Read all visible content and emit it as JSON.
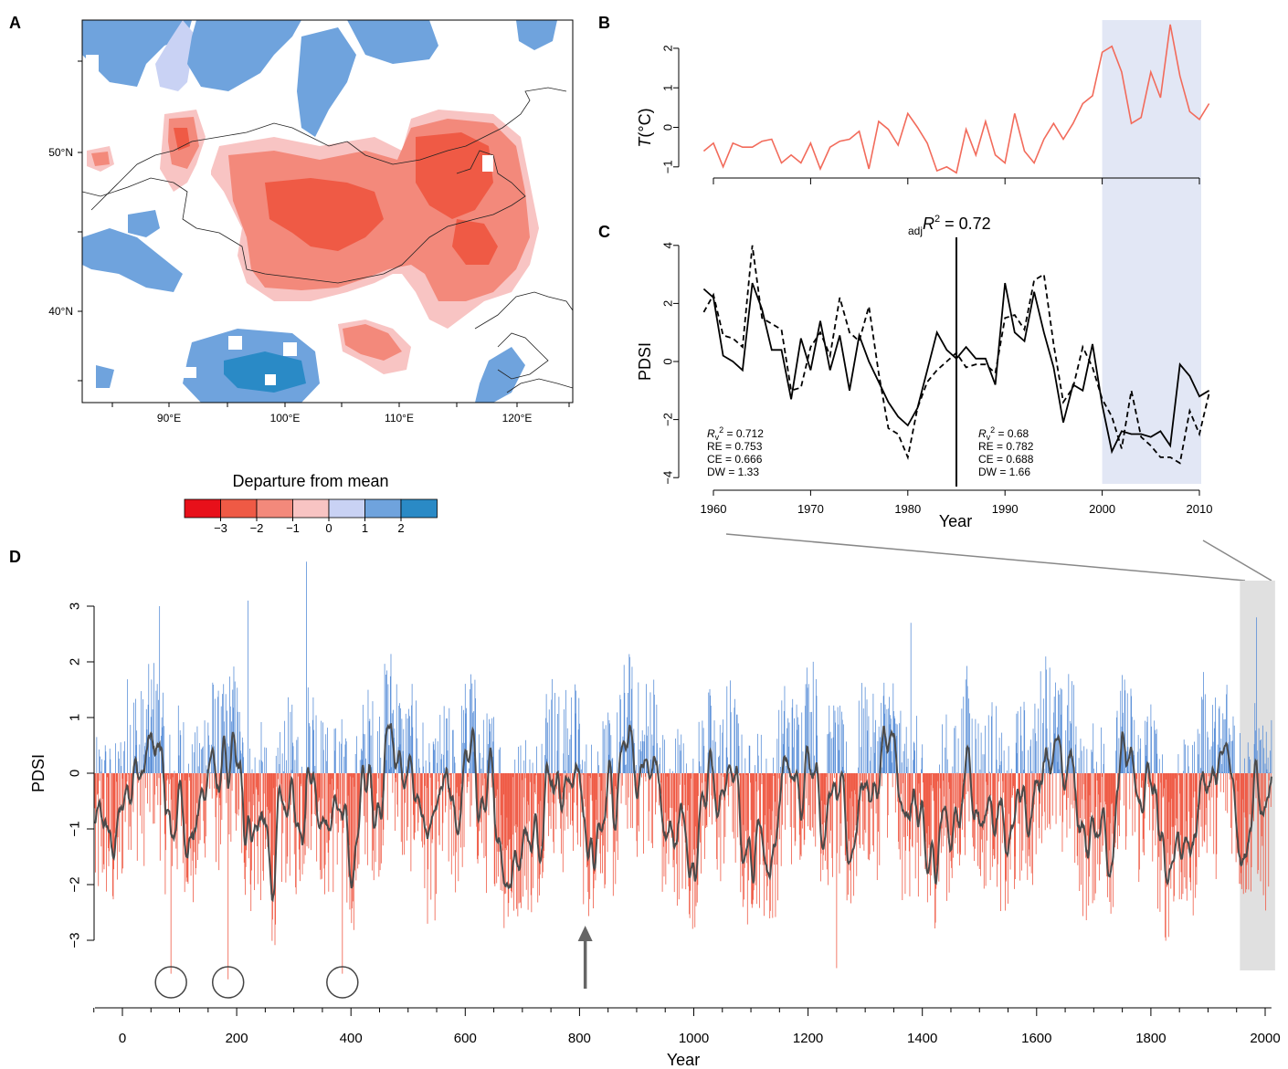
{
  "panels": {
    "a": {
      "label": "A",
      "lat_ticks": [
        "50°N",
        "40°N"
      ],
      "lon_ticks": [
        "90°E",
        "100°E",
        "110°E",
        "120°E"
      ],
      "legend_title": "Departure from mean",
      "legend_labels": [
        "−3",
        "−2",
        "−1",
        "0",
        "1",
        "2"
      ],
      "legend_colors": [
        "#e8101a",
        "#ef5a45",
        "#f3897b",
        "#f8c4c3",
        "#c9d2f4",
        "#6fa3dd",
        "#2a8ac6"
      ]
    },
    "b": {
      "label": "B",
      "ylabel_var": "T",
      "ylabel_unit": "(°C)",
      "yticks": [
        "2",
        "1",
        "0",
        "−1"
      ]
    },
    "c": {
      "label": "C",
      "ylabel": "PDSI",
      "xlabel": "Year",
      "xticks": [
        "1960",
        "1970",
        "1980",
        "1990",
        "2000",
        "2010"
      ],
      "yticks": [
        "4",
        "2",
        "0",
        "−2",
        "−4"
      ],
      "r2_prefix": "adj",
      "r2_var": "R",
      "r2_value": " = 0.72",
      "stats_left": [
        "= 0.712",
        "RE = 0.753",
        "CE = 0.666",
        "DW = 1.33"
      ],
      "stats_right": [
        "= 0.68",
        "RE = 0.782",
        "CE = 0.688",
        "DW = 1.66"
      ],
      "rv_symbol": "R",
      "rv_sub": "v",
      "rv_sup": "2"
    },
    "d": {
      "label": "D",
      "ylabel": "PDSI",
      "xlabel": "Year",
      "xticks": [
        "0",
        "200",
        "400",
        "600",
        "800",
        "1000",
        "1200",
        "1400",
        "1600",
        "1800",
        "2000"
      ],
      "yticks": [
        "3",
        "2",
        "1",
        "0",
        "−1",
        "−2",
        "−3"
      ]
    }
  },
  "colors": {
    "temperature": "#f26b5b",
    "positive": "#5a8fd8",
    "negative": "#ef5a45",
    "smooth": "#4a4a4a",
    "highlight_blue": "#e2e7f5",
    "highlight_grey": "#e0e0e0"
  },
  "chart_data": [
    {
      "type": "line",
      "panel": "B",
      "x": [
        1959,
        1960,
        1961,
        1962,
        1963,
        1964,
        1965,
        1966,
        1967,
        1968,
        1969,
        1970,
        1971,
        1972,
        1973,
        1974,
        1975,
        1976,
        1977,
        1978,
        1979,
        1980,
        1981,
        1982,
        1983,
        1984,
        1985,
        1986,
        1987,
        1988,
        1989,
        1990,
        1991,
        1992,
        1993,
        1994,
        1995,
        1996,
        1997,
        1998,
        1999,
        2000,
        2001,
        2002,
        2003,
        2004,
        2005,
        2006,
        2007,
        2008,
        2009,
        2010,
        2011
      ],
      "y": [
        -0.6,
        -0.4,
        -1.0,
        -0.4,
        -0.5,
        -0.5,
        -0.35,
        -0.3,
        -0.9,
        -0.7,
        -0.9,
        -0.4,
        -1.05,
        -0.5,
        -0.35,
        -0.3,
        -0.1,
        -1.05,
        0.15,
        -0.05,
        -0.45,
        0.35,
        0.0,
        -0.4,
        -1.1,
        -1.0,
        -1.15,
        -0.05,
        -0.7,
        0.15,
        -0.7,
        -0.9,
        0.35,
        -0.6,
        -0.9,
        -0.3,
        0.1,
        -0.3,
        0.1,
        0.6,
        0.8,
        1.9,
        2.05,
        1.4,
        0.1,
        0.25,
        1.4,
        0.75,
        2.6,
        1.3,
        0.4,
        0.2,
        0.6
      ],
      "ylim": [
        -1.2,
        2.7
      ],
      "xlim": [
        1959,
        2011
      ],
      "highlight": [
        2000,
        2010
      ]
    },
    {
      "type": "line",
      "panel": "C",
      "series": [
        {
          "name": "",
          "style": "solid",
          "x": [
            1959,
            1960,
            1961,
            1962,
            1963,
            1964,
            1965,
            1966,
            1967,
            1968,
            1969,
            1970,
            1971,
            1972,
            1973,
            1974,
            1975,
            1976,
            1977,
            1978,
            1979,
            1980,
            1981,
            1982,
            1983,
            1984,
            1985,
            1986,
            1987,
            1988,
            1989,
            1990,
            1991,
            1992,
            1993,
            1994,
            1995,
            1996,
            1997,
            1998,
            1999,
            2000,
            2001,
            2002,
            2003,
            2004,
            2005,
            2006,
            2007,
            2008,
            2009,
            2010,
            2011
          ],
          "values": [
            2.5,
            2.2,
            0.2,
            0.0,
            -0.3,
            2.7,
            1.8,
            0.4,
            0.4,
            -1.3,
            0.8,
            -0.3,
            1.4,
            -0.3,
            0.9,
            -1.0,
            0.9,
            0.0,
            -0.7,
            -1.4,
            -1.9,
            -2.2,
            -1.6,
            -0.3,
            1.0,
            0.4,
            0.1,
            0.5,
            0.1,
            0.1,
            -0.8,
            2.7,
            1.0,
            0.7,
            2.4,
            1.0,
            -0.2,
            -2.1,
            -0.8,
            -1.0,
            0.6,
            -1.5,
            -3.1,
            -2.4,
            -2.5,
            -2.5,
            -2.6,
            -2.4,
            -2.9,
            -0.1,
            -0.5,
            -1.2,
            -1.0
          ]
        },
        {
          "name": "",
          "style": "dashed",
          "x": [
            1959,
            1960,
            1961,
            1962,
            1963,
            1964,
            1965,
            1966,
            1967,
            1968,
            1969,
            1970,
            1971,
            1972,
            1973,
            1974,
            1975,
            1976,
            1977,
            1978,
            1979,
            1980,
            1981,
            1982,
            1983,
            1984,
            1985,
            1986,
            1987,
            1988,
            1989,
            1990,
            1991,
            1992,
            1993,
            1994,
            1995,
            1996,
            1997,
            1998,
            1999,
            2000,
            2001,
            2002,
            2003,
            2004,
            2005,
            2006,
            2007,
            2008,
            2009,
            2010,
            2011
          ],
          "values": [
            1.7,
            2.3,
            0.9,
            0.8,
            0.5,
            4.0,
            1.5,
            1.3,
            1.1,
            -1.0,
            -0.9,
            0.5,
            1.0,
            0.2,
            2.2,
            1.0,
            0.7,
            1.9,
            -0.4,
            -2.3,
            -2.5,
            -3.3,
            -1.6,
            -0.7,
            -0.3,
            0.0,
            0.3,
            -0.2,
            -0.1,
            -0.1,
            -0.4,
            1.5,
            1.6,
            1.1,
            2.8,
            3.0,
            0.6,
            -1.4,
            -0.9,
            0.5,
            -0.2,
            -1.3,
            -1.9,
            -3.0,
            -1.0,
            -2.6,
            -2.9,
            -3.3,
            -3.3,
            -3.5,
            -1.7,
            -2.5,
            -1.1
          ]
        }
      ],
      "ylim": [
        -4,
        4
      ],
      "xlim": [
        1959,
        2011
      ],
      "split_year": 1985,
      "highlight": [
        2000,
        2010
      ]
    },
    {
      "type": "bar",
      "panel": "D",
      "x_range": [
        -48,
        2011
      ],
      "ylim": [
        -3.5,
        3.8
      ],
      "annotations": {
        "circled_years": [
          85,
          185,
          385
        ],
        "arrow_year": 810,
        "highlight": [
          1959,
          2011
        ],
        "highlight_ylim": [
          -3.5,
          3.4
        ]
      },
      "extremes": [
        {
          "year": 65,
          "value": 3.0
        },
        {
          "year": 220,
          "value": 3.1
        },
        {
          "year": 322,
          "value": 3.8
        },
        {
          "year": 185,
          "value": -3.7
        },
        {
          "year": 85,
          "value": -3.6
        },
        {
          "year": 385,
          "value": -3.6
        },
        {
          "year": 1250,
          "value": -3.5
        },
        {
          "year": 1380,
          "value": 2.7
        },
        {
          "year": 1985,
          "value": 2.8
        }
      ]
    }
  ]
}
